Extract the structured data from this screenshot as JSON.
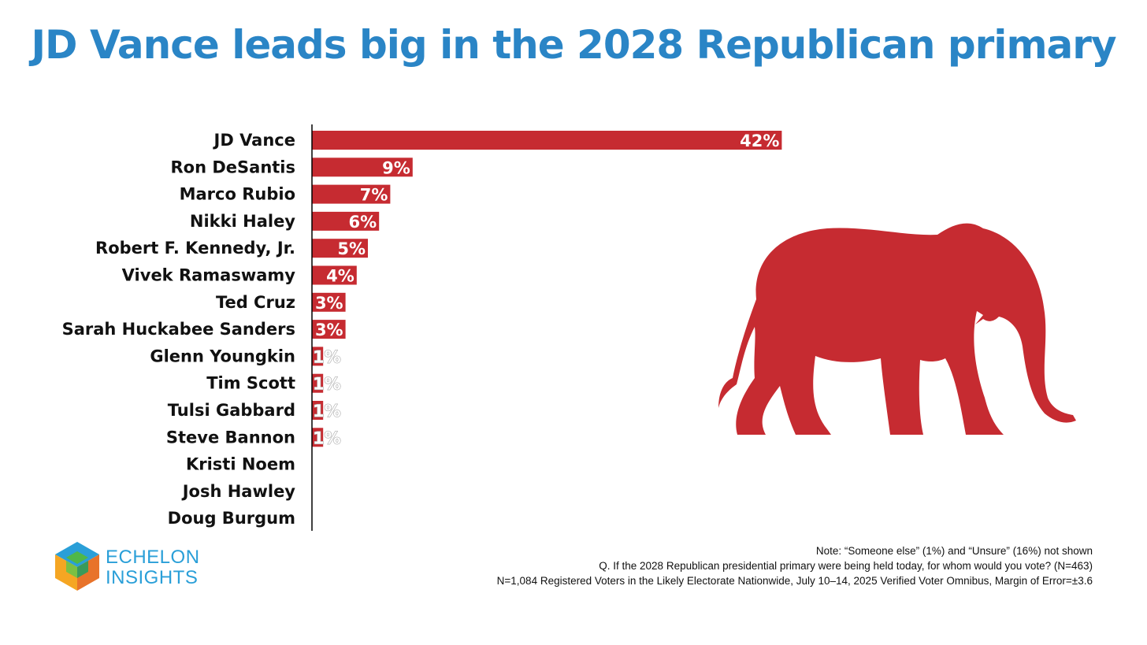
{
  "title": "JD Vance leads big in the 2028 Republican primary",
  "chart_data": {
    "type": "bar",
    "orientation": "horizontal",
    "title": "JD Vance leads big in the 2028 Republican primary",
    "categories": [
      "JD Vance",
      "Ron DeSantis",
      "Marco Rubio",
      "Nikki Haley",
      "Robert F. Kennedy, Jr.",
      "Vivek Ramaswamy",
      "Ted Cruz",
      "Sarah Huckabee Sanders",
      "Glenn Youngkin",
      "Tim Scott",
      "Tulsi Gabbard",
      "Steve Bannon",
      "Kristi Noem",
      "Josh Hawley",
      "Doug Burgum"
    ],
    "values": [
      42,
      9,
      7,
      6,
      5,
      4,
      3,
      3,
      1,
      1,
      1,
      1,
      0,
      0,
      0
    ],
    "data_labels": [
      "42%",
      "9%",
      "7%",
      "6%",
      "5%",
      "4%",
      "3%",
      "3%",
      "1%",
      "1%",
      "1%",
      "1%",
      "",
      "",
      ""
    ],
    "xlabel": "",
    "ylabel": "",
    "xlim": [
      0,
      75
    ],
    "grid": false,
    "bar_color": "#c62b31"
  },
  "notes": [
    "Note: “Someone else” (1%) and “Unsure” (16%) not shown",
    "Q. If the 2028 Republican presidential primary were being held today, for whom would you vote? (N=463)",
    "N=1,084 Registered Voters in the Likely Electorate Nationwide, July 10–14, 2025 Verified Voter Omnibus, Margin of Error=±3.6"
  ],
  "logo": {
    "line1": "ECHELON",
    "line2": "INSIGHTS"
  },
  "colors": {
    "title": "#2a85c6",
    "bar": "#c62b31",
    "elephant": "#c62b31"
  }
}
